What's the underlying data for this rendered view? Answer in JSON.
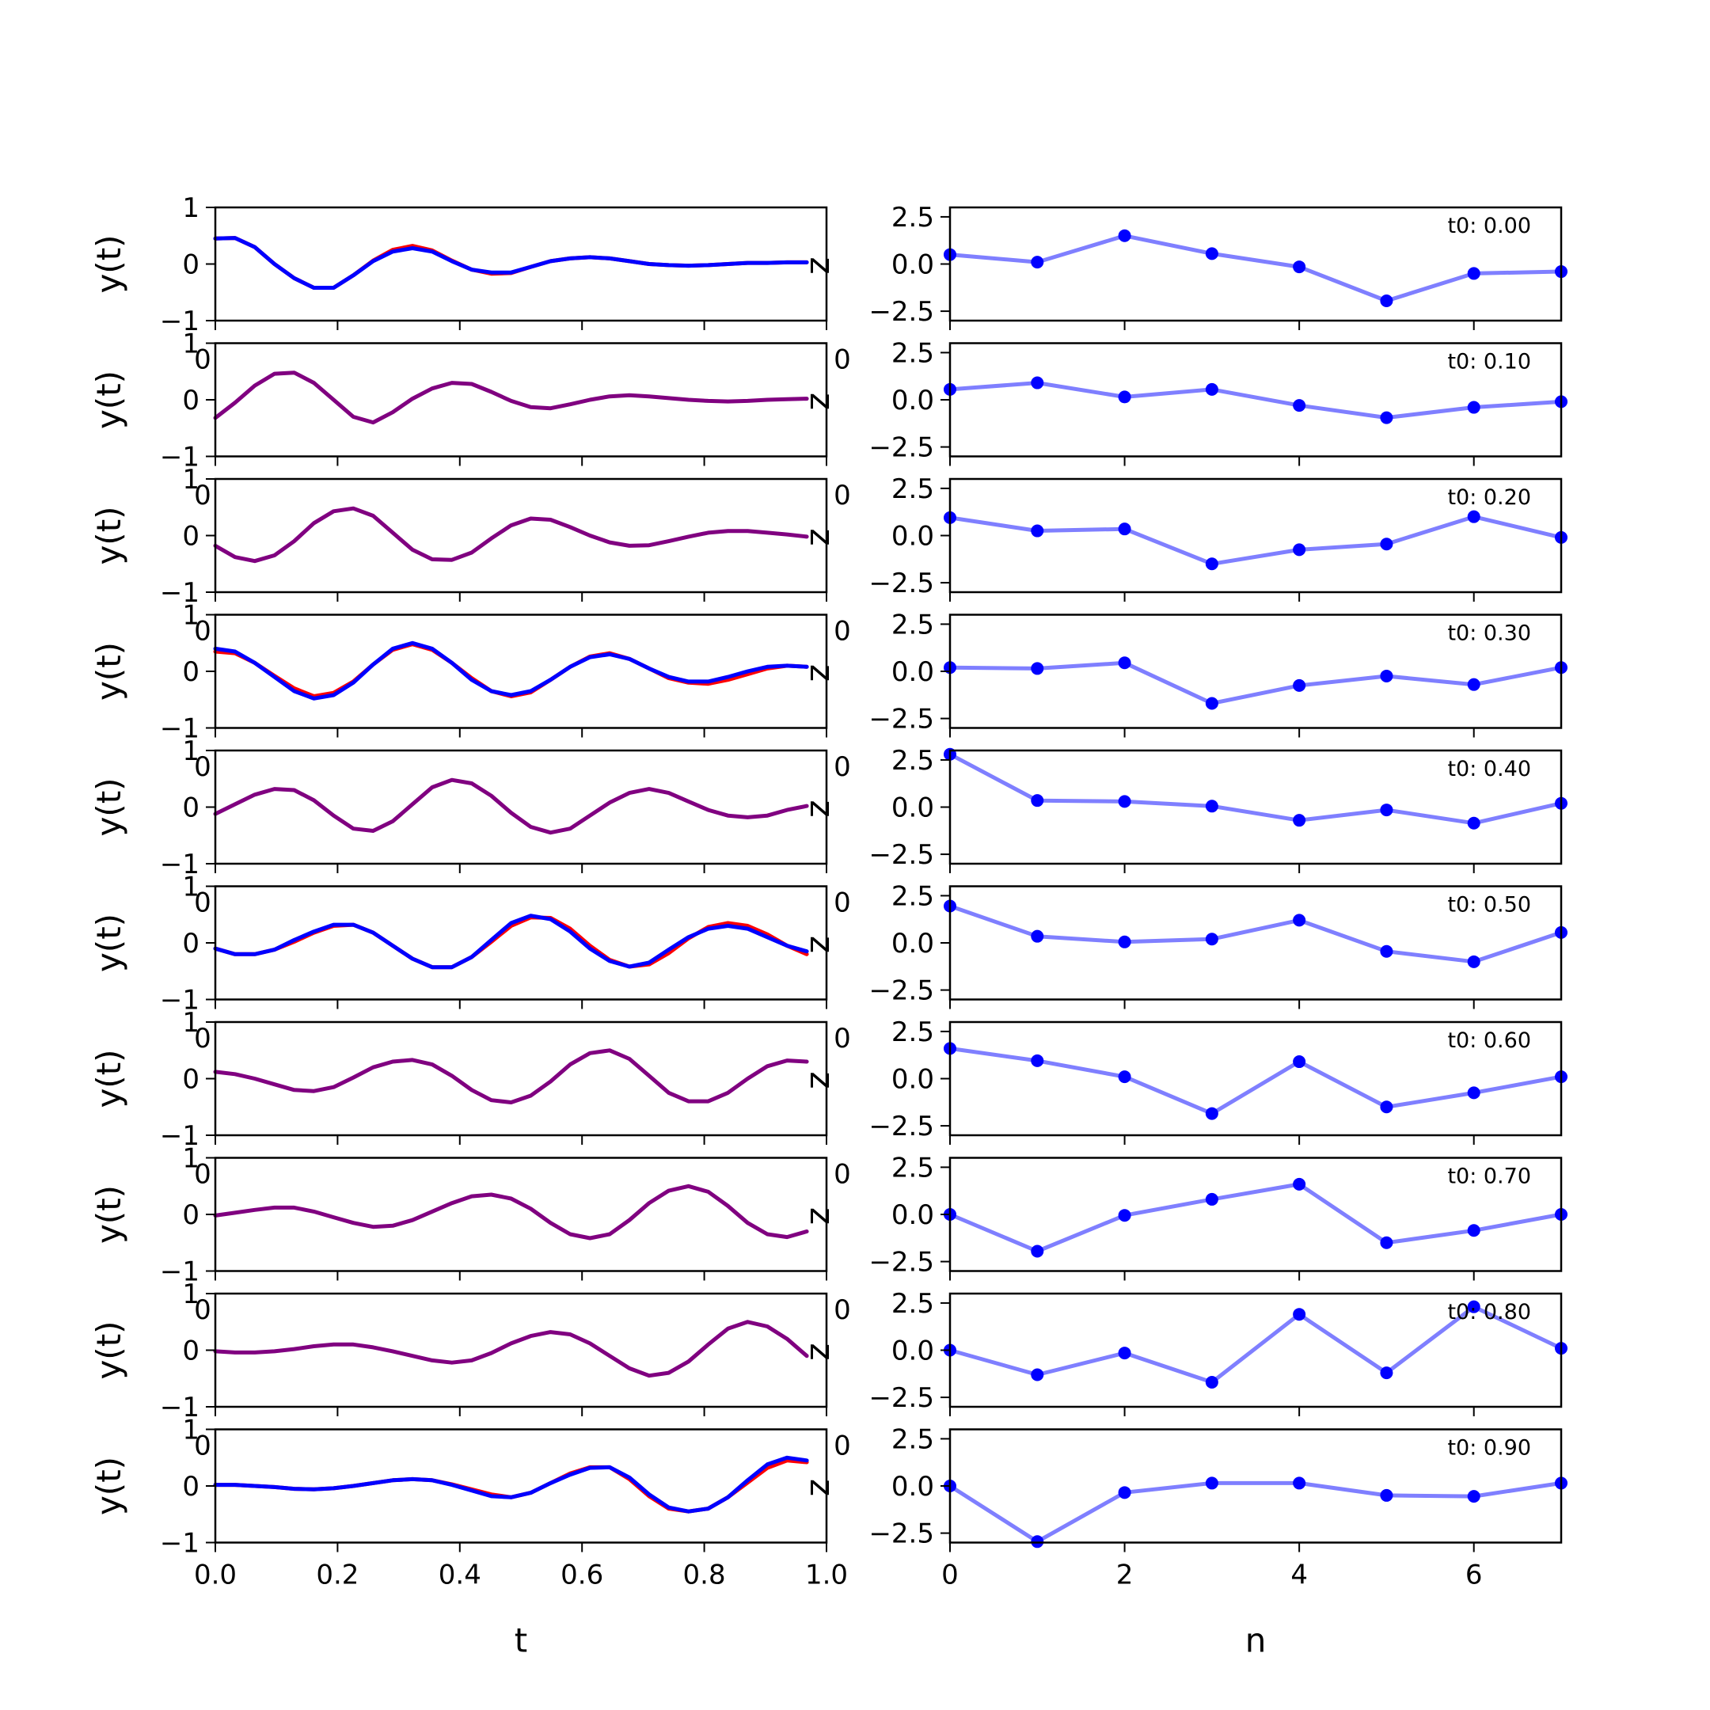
{
  "chart_data": {
    "type": "line",
    "rows": 10,
    "left": {
      "xlabel": "t",
      "ylabel": "y(t)",
      "xlim": [
        0,
        1
      ],
      "ylim": [
        -1,
        1
      ],
      "xticks": [
        "0.0",
        "0.2",
        "0.4",
        "0.6",
        "0.8",
        "1.0"
      ],
      "yticks": [
        "1",
        "0",
        "−1"
      ],
      "ghost_label": "0",
      "z_label": "z",
      "colors": {
        "blue": "#0000ff",
        "red": "#ff0000",
        "overlap": "#800080"
      },
      "t": [
        0,
        0.0323,
        0.0645,
        0.0968,
        0.129,
        0.1613,
        0.1935,
        0.2258,
        0.2581,
        0.2903,
        0.3226,
        0.3548,
        0.3871,
        0.4194,
        0.4516,
        0.4839,
        0.5161,
        0.5484,
        0.5806,
        0.6129,
        0.6452,
        0.6774,
        0.7097,
        0.7419,
        0.7742,
        0.8065,
        0.8387,
        0.871,
        0.9032,
        0.9355,
        0.9677
      ],
      "series": [
        {
          "blue": [
            0.45,
            0.46,
            0.3,
            0.0,
            -0.25,
            -0.42,
            -0.42,
            -0.2,
            0.05,
            0.22,
            0.28,
            0.22,
            0.05,
            -0.1,
            -0.15,
            -0.15,
            -0.05,
            0.05,
            0.1,
            0.12,
            0.1,
            0.05,
            0.0,
            -0.02,
            -0.03,
            -0.02,
            0.0,
            0.02,
            0.02,
            0.03,
            0.03
          ],
          "red": [
            0.45,
            0.46,
            0.3,
            0.0,
            -0.25,
            -0.42,
            -0.42,
            -0.2,
            0.06,
            0.25,
            0.32,
            0.24,
            0.06,
            -0.1,
            -0.17,
            -0.16,
            -0.05,
            0.05,
            0.1,
            0.12,
            0.1,
            0.05,
            0.0,
            -0.02,
            -0.03,
            -0.02,
            0.0,
            0.02,
            0.02,
            0.03,
            0.03
          ]
        },
        {
          "blue": [
            -0.32,
            -0.05,
            0.25,
            0.46,
            0.48,
            0.3,
            0.0,
            -0.3,
            -0.4,
            -0.22,
            0.02,
            0.2,
            0.3,
            0.28,
            0.14,
            -0.02,
            -0.13,
            -0.15,
            -0.08,
            0.0,
            0.06,
            0.08,
            0.06,
            0.03,
            0.0,
            -0.02,
            -0.03,
            -0.02,
            0.0,
            0.01,
            0.02
          ]
        },
        {
          "blue": [
            -0.18,
            -0.38,
            -0.45,
            -0.35,
            -0.1,
            0.22,
            0.43,
            0.48,
            0.35,
            0.05,
            -0.25,
            -0.42,
            -0.43,
            -0.3,
            -0.05,
            0.18,
            0.3,
            0.28,
            0.15,
            0.0,
            -0.12,
            -0.18,
            -0.17,
            -0.1,
            -0.02,
            0.05,
            0.08,
            0.08,
            0.05,
            0.02,
            -0.02
          ]
        },
        {
          "blue": [
            0.4,
            0.35,
            0.15,
            -0.1,
            -0.35,
            -0.48,
            -0.42,
            -0.2,
            0.12,
            0.4,
            0.5,
            0.4,
            0.15,
            -0.15,
            -0.35,
            -0.42,
            -0.35,
            -0.15,
            0.08,
            0.25,
            0.3,
            0.22,
            0.05,
            -0.1,
            -0.18,
            -0.18,
            -0.1,
            0.0,
            0.08,
            0.1,
            0.08
          ],
          "red": [
            0.35,
            0.32,
            0.15,
            -0.08,
            -0.3,
            -0.44,
            -0.38,
            -0.18,
            0.12,
            0.38,
            0.48,
            0.38,
            0.15,
            -0.12,
            -0.35,
            -0.44,
            -0.37,
            -0.15,
            0.08,
            0.26,
            0.32,
            0.22,
            0.05,
            -0.12,
            -0.2,
            -0.22,
            -0.15,
            -0.05,
            0.05,
            0.1,
            0.08
          ]
        },
        {
          "blue": [
            -0.12,
            0.05,
            0.22,
            0.32,
            0.3,
            0.12,
            -0.15,
            -0.38,
            -0.42,
            -0.25,
            0.05,
            0.35,
            0.48,
            0.42,
            0.2,
            -0.1,
            -0.35,
            -0.45,
            -0.38,
            -0.15,
            0.08,
            0.25,
            0.32,
            0.25,
            0.1,
            -0.05,
            -0.15,
            -0.18,
            -0.15,
            -0.05,
            0.02
          ]
        },
        {
          "blue": [
            -0.1,
            -0.2,
            -0.2,
            -0.12,
            0.05,
            0.2,
            0.32,
            0.32,
            0.18,
            -0.05,
            -0.28,
            -0.43,
            -0.43,
            -0.25,
            0.05,
            0.35,
            0.48,
            0.42,
            0.2,
            -0.1,
            -0.32,
            -0.42,
            -0.35,
            -0.12,
            0.1,
            0.25,
            0.3,
            0.25,
            0.1,
            -0.05,
            -0.15
          ],
          "red": [
            -0.1,
            -0.2,
            -0.2,
            -0.12,
            0.02,
            0.18,
            0.3,
            0.32,
            0.18,
            -0.05,
            -0.28,
            -0.43,
            -0.43,
            -0.25,
            0.02,
            0.3,
            0.45,
            0.44,
            0.25,
            -0.05,
            -0.3,
            -0.42,
            -0.38,
            -0.18,
            0.08,
            0.28,
            0.35,
            0.3,
            0.15,
            -0.05,
            -0.2
          ]
        },
        {
          "blue": [
            0.12,
            0.08,
            0.0,
            -0.1,
            -0.2,
            -0.22,
            -0.15,
            0.02,
            0.2,
            0.3,
            0.33,
            0.25,
            0.05,
            -0.2,
            -0.38,
            -0.42,
            -0.3,
            -0.05,
            0.25,
            0.45,
            0.5,
            0.35,
            0.05,
            -0.25,
            -0.4,
            -0.4,
            -0.25,
            0.0,
            0.22,
            0.32,
            0.3
          ]
        },
        {
          "blue": [
            -0.02,
            0.03,
            0.08,
            0.12,
            0.12,
            0.05,
            -0.05,
            -0.15,
            -0.22,
            -0.2,
            -0.1,
            0.05,
            0.2,
            0.32,
            0.35,
            0.28,
            0.1,
            -0.15,
            -0.35,
            -0.42,
            -0.35,
            -0.1,
            0.2,
            0.42,
            0.5,
            0.4,
            0.15,
            -0.15,
            -0.35,
            -0.4,
            -0.3
          ]
        },
        {
          "blue": [
            -0.02,
            -0.04,
            -0.04,
            -0.02,
            0.02,
            0.07,
            0.1,
            0.1,
            0.05,
            -0.02,
            -0.1,
            -0.18,
            -0.22,
            -0.18,
            -0.05,
            0.12,
            0.25,
            0.32,
            0.28,
            0.12,
            -0.1,
            -0.32,
            -0.45,
            -0.4,
            -0.2,
            0.1,
            0.38,
            0.5,
            0.42,
            0.2,
            -0.1
          ]
        },
        {
          "blue": [
            0.02,
            0.02,
            0.0,
            -0.02,
            -0.05,
            -0.06,
            -0.04,
            0.0,
            0.05,
            0.1,
            0.12,
            0.1,
            0.02,
            -0.08,
            -0.18,
            -0.2,
            -0.12,
            0.05,
            0.2,
            0.32,
            0.33,
            0.15,
            -0.15,
            -0.38,
            -0.45,
            -0.4,
            -0.2,
            0.1,
            0.38,
            0.5,
            0.45
          ],
          "red": [
            0.02,
            0.02,
            0.0,
            -0.02,
            -0.05,
            -0.06,
            -0.04,
            0.0,
            0.05,
            0.1,
            0.12,
            0.1,
            0.03,
            -0.06,
            -0.15,
            -0.2,
            -0.12,
            0.05,
            0.22,
            0.33,
            0.33,
            0.12,
            -0.18,
            -0.4,
            -0.45,
            -0.4,
            -0.2,
            0.06,
            0.32,
            0.45,
            0.42
          ]
        }
      ]
    },
    "right": {
      "xlabel": "n",
      "xlim": [
        0,
        7
      ],
      "ylim": [
        -3,
        3
      ],
      "xticks": [
        "0",
        "2",
        "4",
        "6"
      ],
      "yticks": [
        "2.5",
        "0.0",
        "−2.5"
      ],
      "color": "#0000ff",
      "line_alpha": 0.5,
      "n": [
        0,
        1,
        2,
        3,
        4,
        5,
        6,
        7
      ],
      "panels": [
        {
          "label": "t0: 0.00",
          "values": [
            0.5,
            0.1,
            1.5,
            0.55,
            -0.15,
            -1.95,
            -0.5,
            -0.4
          ]
        },
        {
          "label": "t0: 0.10",
          "values": [
            0.55,
            0.9,
            0.15,
            0.55,
            -0.3,
            -0.95,
            -0.4,
            -0.1
          ]
        },
        {
          "label": "t0: 0.20",
          "values": [
            0.95,
            0.25,
            0.35,
            -1.5,
            -0.75,
            -0.45,
            1.0,
            -0.1
          ]
        },
        {
          "label": "t0: 0.30",
          "values": [
            0.2,
            0.15,
            0.45,
            -1.7,
            -0.75,
            -0.25,
            -0.7,
            0.2
          ]
        },
        {
          "label": "t0: 0.40",
          "values": [
            2.8,
            0.35,
            0.3,
            0.05,
            -0.7,
            -0.15,
            -0.85,
            0.2
          ]
        },
        {
          "label": "t0: 0.50",
          "values": [
            1.95,
            0.35,
            0.05,
            0.2,
            1.2,
            -0.45,
            -1.0,
            0.55
          ]
        },
        {
          "label": "t0: 0.60",
          "values": [
            1.6,
            0.95,
            0.1,
            -1.85,
            0.9,
            -1.5,
            -0.75,
            0.1
          ]
        },
        {
          "label": "t0: 0.70",
          "values": [
            0.0,
            -1.95,
            -0.05,
            0.8,
            1.6,
            -1.5,
            -0.85,
            0.0
          ]
        },
        {
          "label": "t0: 0.80",
          "values": [
            0.0,
            -1.3,
            -0.15,
            -1.7,
            1.9,
            -1.2,
            2.3,
            0.1
          ]
        },
        {
          "label": "t0: 0.90",
          "values": [
            0.0,
            -2.95,
            -0.35,
            0.15,
            0.15,
            -0.5,
            -0.55,
            0.15
          ]
        }
      ]
    }
  }
}
